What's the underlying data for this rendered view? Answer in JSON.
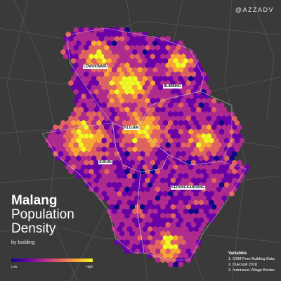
{
  "watermark": "@AZZADV",
  "title": {
    "line1": "Malang",
    "line2": "Population",
    "line3": "Density",
    "subtitle": "by building"
  },
  "legend": {
    "low": "Low",
    "high": "High",
    "colors": [
      "#0d0887",
      "#6a00a8",
      "#b12a90",
      "#e16462",
      "#fca636",
      "#f0f921"
    ]
  },
  "variables": {
    "title": "Variables",
    "items": [
      "1. OSM Free Building Data",
      "2. Dukcapil 2018",
      "3. Indonesia Village Border"
    ]
  },
  "districts": [
    {
      "id": "lowokwaru",
      "name": "LOWOKWARU"
    },
    {
      "id": "blimbing",
      "name": "BLIMBING"
    },
    {
      "id": "klojen",
      "name": "KLOJEN"
    },
    {
      "id": "sukun",
      "name": "SUKUN"
    },
    {
      "id": "kedungkandang",
      "name": "KEDUNGKANDANG"
    }
  ],
  "colors": {
    "background": "#3a3a3a",
    "roads": "#555555",
    "boundary": "#cfcfcf"
  }
}
